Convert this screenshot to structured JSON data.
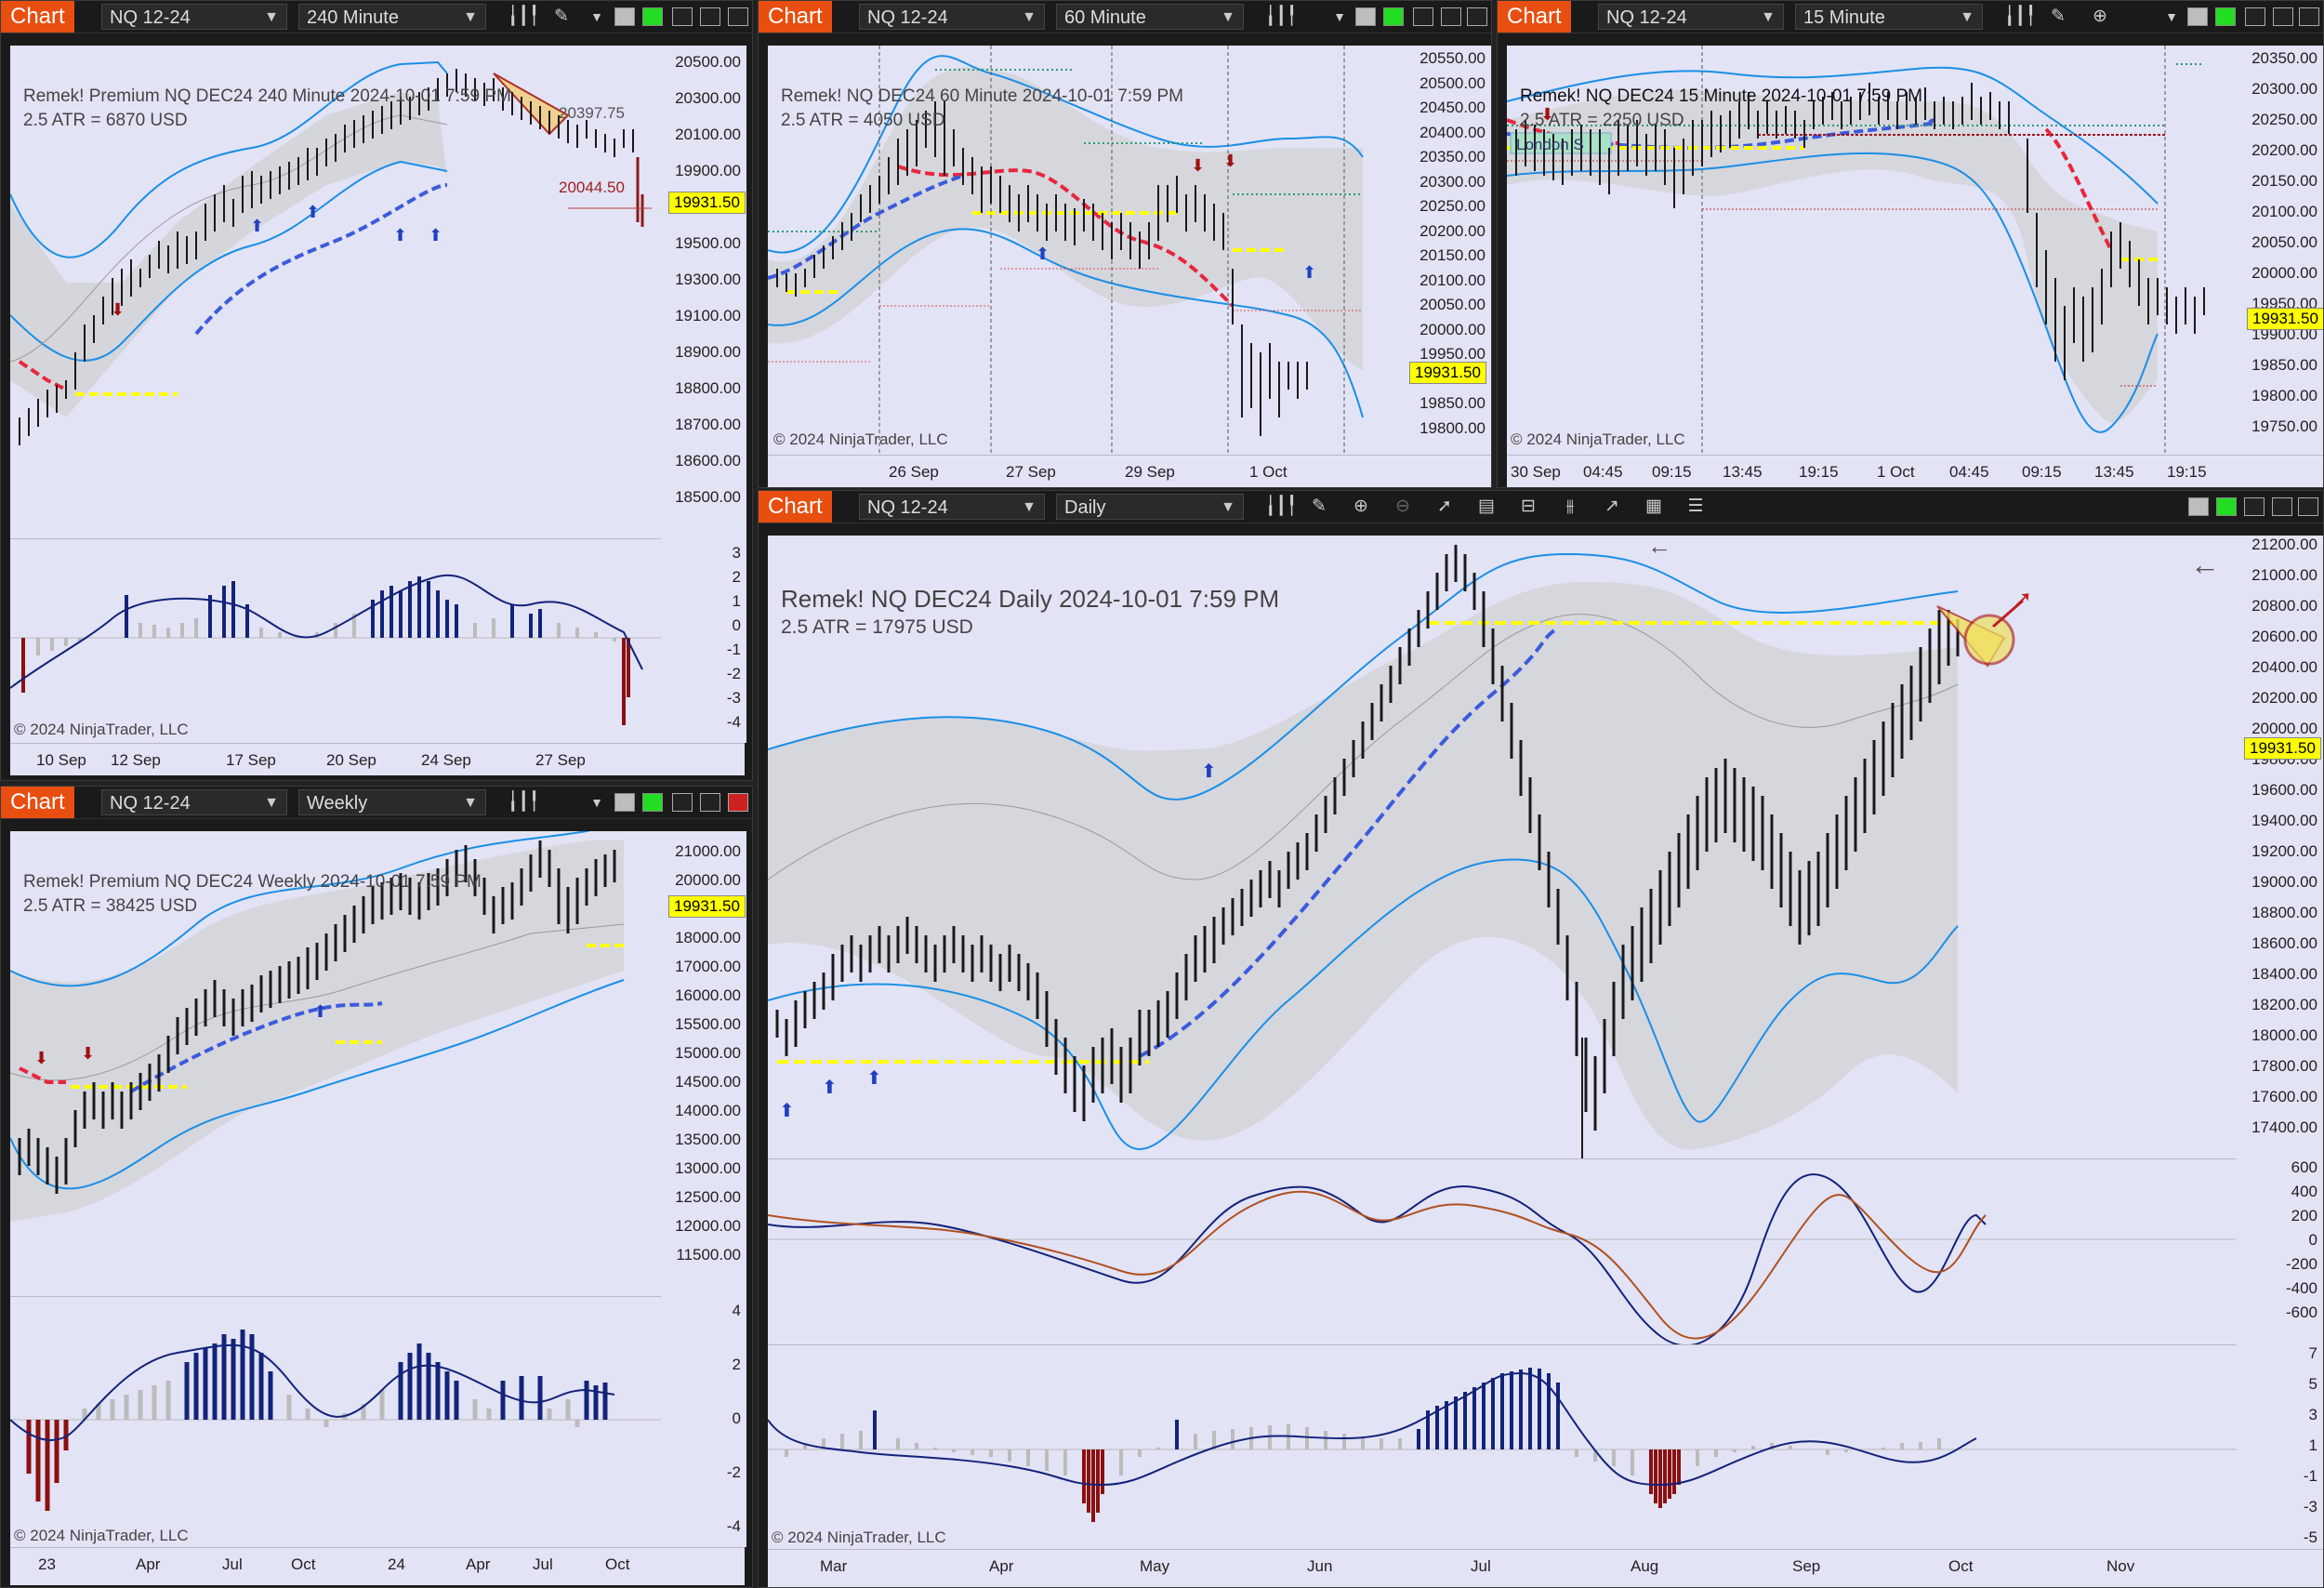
{
  "common": {
    "chart_button": "Chart",
    "copyright": "© 2024 NinjaTrader, LLC",
    "last_price": "19931.50"
  },
  "colors": {
    "accent": "#e84e0f",
    "chart_bg": "#e2e3f5",
    "band": "#1a8fe6",
    "up": "#1a1a1a",
    "down": "#8b1a1a",
    "price_tag": "#ffff00",
    "trail_red": "#e8263c",
    "trail_blue": "#3a5bdc",
    "macd_pos": "#13237a",
    "macd_neg": "#8b1010"
  },
  "charts": {
    "c240": {
      "instrument": "NQ 12-24",
      "interval": "240 Minute",
      "title": "Remek!  Premium  NQ DEC24  240 Minute  2024-10-01 7:59 PM",
      "atr": "2.5 ATR = 6870 USD",
      "yticks": [
        "20500.00",
        "20300.00",
        "20100.00",
        "19900.00",
        "19700.00",
        "19500.00",
        "19300.00",
        "19100.00",
        "18900.00",
        "18800.00",
        "18700.00",
        "18600.00",
        "18500.00"
      ],
      "subticks": [
        "3",
        "2",
        "1",
        "0",
        "-1",
        "-2",
        "-3",
        "-4"
      ],
      "xticks": [
        "10 Sep",
        "12 Sep",
        "17 Sep",
        "20 Sep",
        "24 Sep",
        "27 Sep"
      ],
      "labels": [
        "20397.75",
        "20044.50"
      ]
    },
    "c60": {
      "instrument": "NQ 12-24",
      "interval": "60 Minute",
      "title": "Remek!  NQ DEC24  60 Minute  2024-10-01 7:59 PM",
      "atr": "2.5 ATR = 4050 USD",
      "yticks": [
        "20550.00",
        "20500.00",
        "20450.00",
        "20400.00",
        "20350.00",
        "20300.00",
        "20250.00",
        "20200.00",
        "20150.00",
        "20100.00",
        "20050.00",
        "20000.00",
        "19950.00",
        "19900.00",
        "19850.00",
        "19800.00"
      ],
      "xticks": [
        "26 Sep",
        "27 Sep",
        "29 Sep",
        "1 Oct"
      ]
    },
    "c15": {
      "instrument": "NQ 12-24",
      "interval": "15 Minute",
      "title": "Remek!  NQ DEC24  15 Minute  2024-10-01 7:59 PM",
      "atr": "2.5 ATR = 2250 USD",
      "session_label": "London S",
      "yticks": [
        "20350.00",
        "20300.00",
        "20250.00",
        "20200.00",
        "20150.00",
        "20100.00",
        "20050.00",
        "20000.00",
        "19950.00",
        "19900.00",
        "19850.00",
        "19800.00",
        "19750.00"
      ],
      "xticks": [
        "30 Sep",
        "04:45",
        "09:15",
        "13:45",
        "19:15",
        "1 Oct",
        "04:45",
        "09:15",
        "13:45",
        "19:15"
      ]
    },
    "cweek": {
      "instrument": "NQ 12-24",
      "interval": "Weekly",
      "title": "Remek!  Premium  NQ DEC24  Weekly  2024-10-01 7:59 PM",
      "atr": "2.5 ATR = 38425 USD",
      "yticks": [
        "21000.00",
        "20000.00",
        "19000.00",
        "18000.00",
        "17000.00",
        "16000.00",
        "15500.00",
        "15000.00",
        "14500.00",
        "14000.00",
        "13500.00",
        "13000.00",
        "12500.00",
        "12000.00",
        "11500.00"
      ],
      "subticks": [
        "4",
        "2",
        "0",
        "-2",
        "-4"
      ],
      "xticks": [
        "23",
        "Apr",
        "Jul",
        "Oct",
        "24",
        "Apr",
        "Jul",
        "Oct"
      ]
    },
    "cday": {
      "instrument": "NQ 12-24",
      "interval": "Daily",
      "title": "Remek!  NQ DEC24  Daily  2024-10-01 7:59 PM",
      "atr": "2.5 ATR = 17975 USD",
      "yticks": [
        "21200.00",
        "21000.00",
        "20800.00",
        "20600.00",
        "20400.00",
        "20200.00",
        "20000.00",
        "19800.00",
        "19600.00",
        "19400.00",
        "19200.00",
        "19000.00",
        "18800.00",
        "18600.00",
        "18400.00",
        "18200.00",
        "18000.00",
        "17800.00",
        "17600.00",
        "17400.00"
      ],
      "macdticks": [
        "600",
        "400",
        "200",
        "0",
        "-200",
        "-400",
        "-600"
      ],
      "subticks": [
        "7",
        "5",
        "3",
        "1",
        "-1",
        "-3",
        "-5"
      ],
      "xticks": [
        "Mar",
        "Apr",
        "May",
        "Jun",
        "Jul",
        "Aug",
        "Sep",
        "Oct",
        "Nov"
      ]
    }
  }
}
